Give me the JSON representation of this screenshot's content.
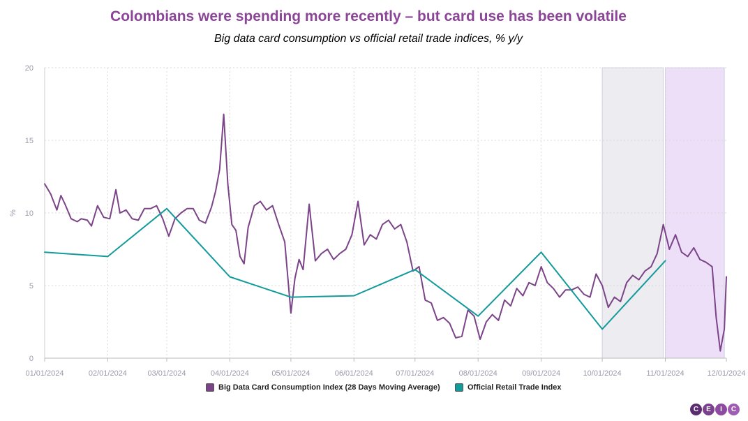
{
  "title": "Colombians were spending more recently – but card use has been volatile",
  "subtitle": "Big data card consumption vs official retail trade indices, % y/y",
  "logo": {
    "letters": [
      "C",
      "E",
      "I",
      "C"
    ],
    "colors": [
      "#5b2c6f",
      "#7b3f8e",
      "#8e4aa0",
      "#a05cb3"
    ]
  },
  "colors": {
    "card": "#7b4388",
    "retail": "#139a9a",
    "shade_grey": "#ececf1",
    "shade_purple": "#ecdff7",
    "grid": "#d9d9d9",
    "axis_text": "#9a9aaa"
  },
  "chart_data": {
    "type": "line",
    "title": "Colombians were spending more recently – but card use has been volatile",
    "subtitle": "Big data card consumption vs official retail trade indices, % y/y",
    "ylabel": "%",
    "xlabel": "",
    "ylim": [
      0,
      20
    ],
    "yticks": [
      0,
      5,
      10,
      15,
      20
    ],
    "xlim": [
      "2024-01-01",
      "2024-12-01"
    ],
    "xticks": [
      "01/01/2024",
      "02/01/2024",
      "03/01/2024",
      "04/01/2024",
      "05/01/2024",
      "06/01/2024",
      "07/01/2024",
      "08/01/2024",
      "09/01/2024",
      "10/01/2024",
      "11/01/2024",
      "12/01/2024"
    ],
    "grid": true,
    "legend_position": "bottom",
    "shaded_regions": [
      {
        "start": "2024-10-01",
        "end": "2024-10-31",
        "color": "grey"
      },
      {
        "start": "2024-11-01",
        "end": "2024-11-30",
        "color": "purple"
      }
    ],
    "series": [
      {
        "name": "Big Data Card Consumption Index (28 Days Moving Average)",
        "x": [
          "2024-01-01",
          "2024-01-04",
          "2024-01-07",
          "2024-01-09",
          "2024-01-11",
          "2024-01-14",
          "2024-01-17",
          "2024-01-19",
          "2024-01-22",
          "2024-01-24",
          "2024-01-27",
          "2024-01-30",
          "2024-02-02",
          "2024-02-05",
          "2024-02-07",
          "2024-02-10",
          "2024-02-13",
          "2024-02-16",
          "2024-02-19",
          "2024-02-22",
          "2024-02-25",
          "2024-02-28",
          "2024-03-02",
          "2024-03-05",
          "2024-03-08",
          "2024-03-11",
          "2024-03-14",
          "2024-03-17",
          "2024-03-20",
          "2024-03-23",
          "2024-03-25",
          "2024-03-27",
          "2024-03-29",
          "2024-03-31",
          "2024-04-02",
          "2024-04-04",
          "2024-04-06",
          "2024-04-08",
          "2024-04-10",
          "2024-04-13",
          "2024-04-16",
          "2024-04-19",
          "2024-04-22",
          "2024-04-25",
          "2024-04-28",
          "2024-05-01",
          "2024-05-03",
          "2024-05-05",
          "2024-05-07",
          "2024-05-10",
          "2024-05-13",
          "2024-05-16",
          "2024-05-19",
          "2024-05-22",
          "2024-05-25",
          "2024-05-28",
          "2024-05-31",
          "2024-06-03",
          "2024-06-06",
          "2024-06-09",
          "2024-06-12",
          "2024-06-15",
          "2024-06-18",
          "2024-06-21",
          "2024-06-24",
          "2024-06-27",
          "2024-06-30",
          "2024-07-03",
          "2024-07-06",
          "2024-07-09",
          "2024-07-12",
          "2024-07-15",
          "2024-07-18",
          "2024-07-21",
          "2024-07-24",
          "2024-07-27",
          "2024-07-30",
          "2024-08-02",
          "2024-08-05",
          "2024-08-08",
          "2024-08-11",
          "2024-08-14",
          "2024-08-17",
          "2024-08-20",
          "2024-08-23",
          "2024-08-26",
          "2024-08-29",
          "2024-09-01",
          "2024-09-04",
          "2024-09-07",
          "2024-09-10",
          "2024-09-13",
          "2024-09-16",
          "2024-09-19",
          "2024-09-22",
          "2024-09-25",
          "2024-09-28",
          "2024-10-01",
          "2024-10-04",
          "2024-10-07",
          "2024-10-10",
          "2024-10-13",
          "2024-10-16",
          "2024-10-19",
          "2024-10-22",
          "2024-10-25",
          "2024-10-28",
          "2024-10-31",
          "2024-11-03",
          "2024-11-06",
          "2024-11-09",
          "2024-11-12",
          "2024-11-15",
          "2024-11-18",
          "2024-11-21",
          "2024-11-24",
          "2024-11-26",
          "2024-11-28",
          "2024-11-30",
          "2024-12-01"
        ],
        "values": [
          12.0,
          11.3,
          10.2,
          11.2,
          10.6,
          9.6,
          9.4,
          9.6,
          9.5,
          9.1,
          10.5,
          9.7,
          9.6,
          11.6,
          10.0,
          10.2,
          9.6,
          9.5,
          10.3,
          10.3,
          10.5,
          9.6,
          8.4,
          9.6,
          10.0,
          10.3,
          10.3,
          9.5,
          9.3,
          10.4,
          11.5,
          13.0,
          16.8,
          12.0,
          9.2,
          8.8,
          7.0,
          6.5,
          9.0,
          10.5,
          10.8,
          10.2,
          10.5,
          9.2,
          8.0,
          3.1,
          5.5,
          6.8,
          6.1,
          10.6,
          6.7,
          7.2,
          7.5,
          6.8,
          7.2,
          7.5,
          8.5,
          10.8,
          7.8,
          8.5,
          8.2,
          9.2,
          9.5,
          8.9,
          9.2,
          8.0,
          6.0,
          6.3,
          4.0,
          3.8,
          2.6,
          2.8,
          2.4,
          1.4,
          1.5,
          3.3,
          2.9,
          1.3,
          2.5,
          3.0,
          2.6,
          4.0,
          3.6,
          4.8,
          4.3,
          5.2,
          5.0,
          6.3,
          5.2,
          4.8,
          4.2,
          4.7,
          4.7,
          4.9,
          4.4,
          4.2,
          5.8,
          5.0,
          3.5,
          4.2,
          3.9,
          5.2,
          5.7,
          5.4,
          6.0,
          6.3,
          7.2,
          9.2,
          7.5,
          8.5,
          7.3,
          7.0,
          7.6,
          6.8,
          6.6,
          6.3,
          2.8,
          0.5,
          2.0,
          5.6
        ]
      },
      {
        "name": "Official Retail Trade Index",
        "x": [
          "2024-01-01",
          "2024-02-01",
          "2024-03-01",
          "2024-04-01",
          "2024-05-01",
          "2024-06-01",
          "2024-07-01",
          "2024-08-01",
          "2024-09-01",
          "2024-10-01",
          "2024-11-01"
        ],
        "values": [
          7.3,
          7.0,
          10.3,
          5.6,
          4.2,
          4.3,
          6.1,
          2.9,
          7.3,
          2.0,
          6.7
        ]
      }
    ]
  },
  "legend": {
    "card_label": "Big Data Card Consumption Index (28 Days Moving Average)",
    "retail_label": "Official Retail Trade Index"
  }
}
